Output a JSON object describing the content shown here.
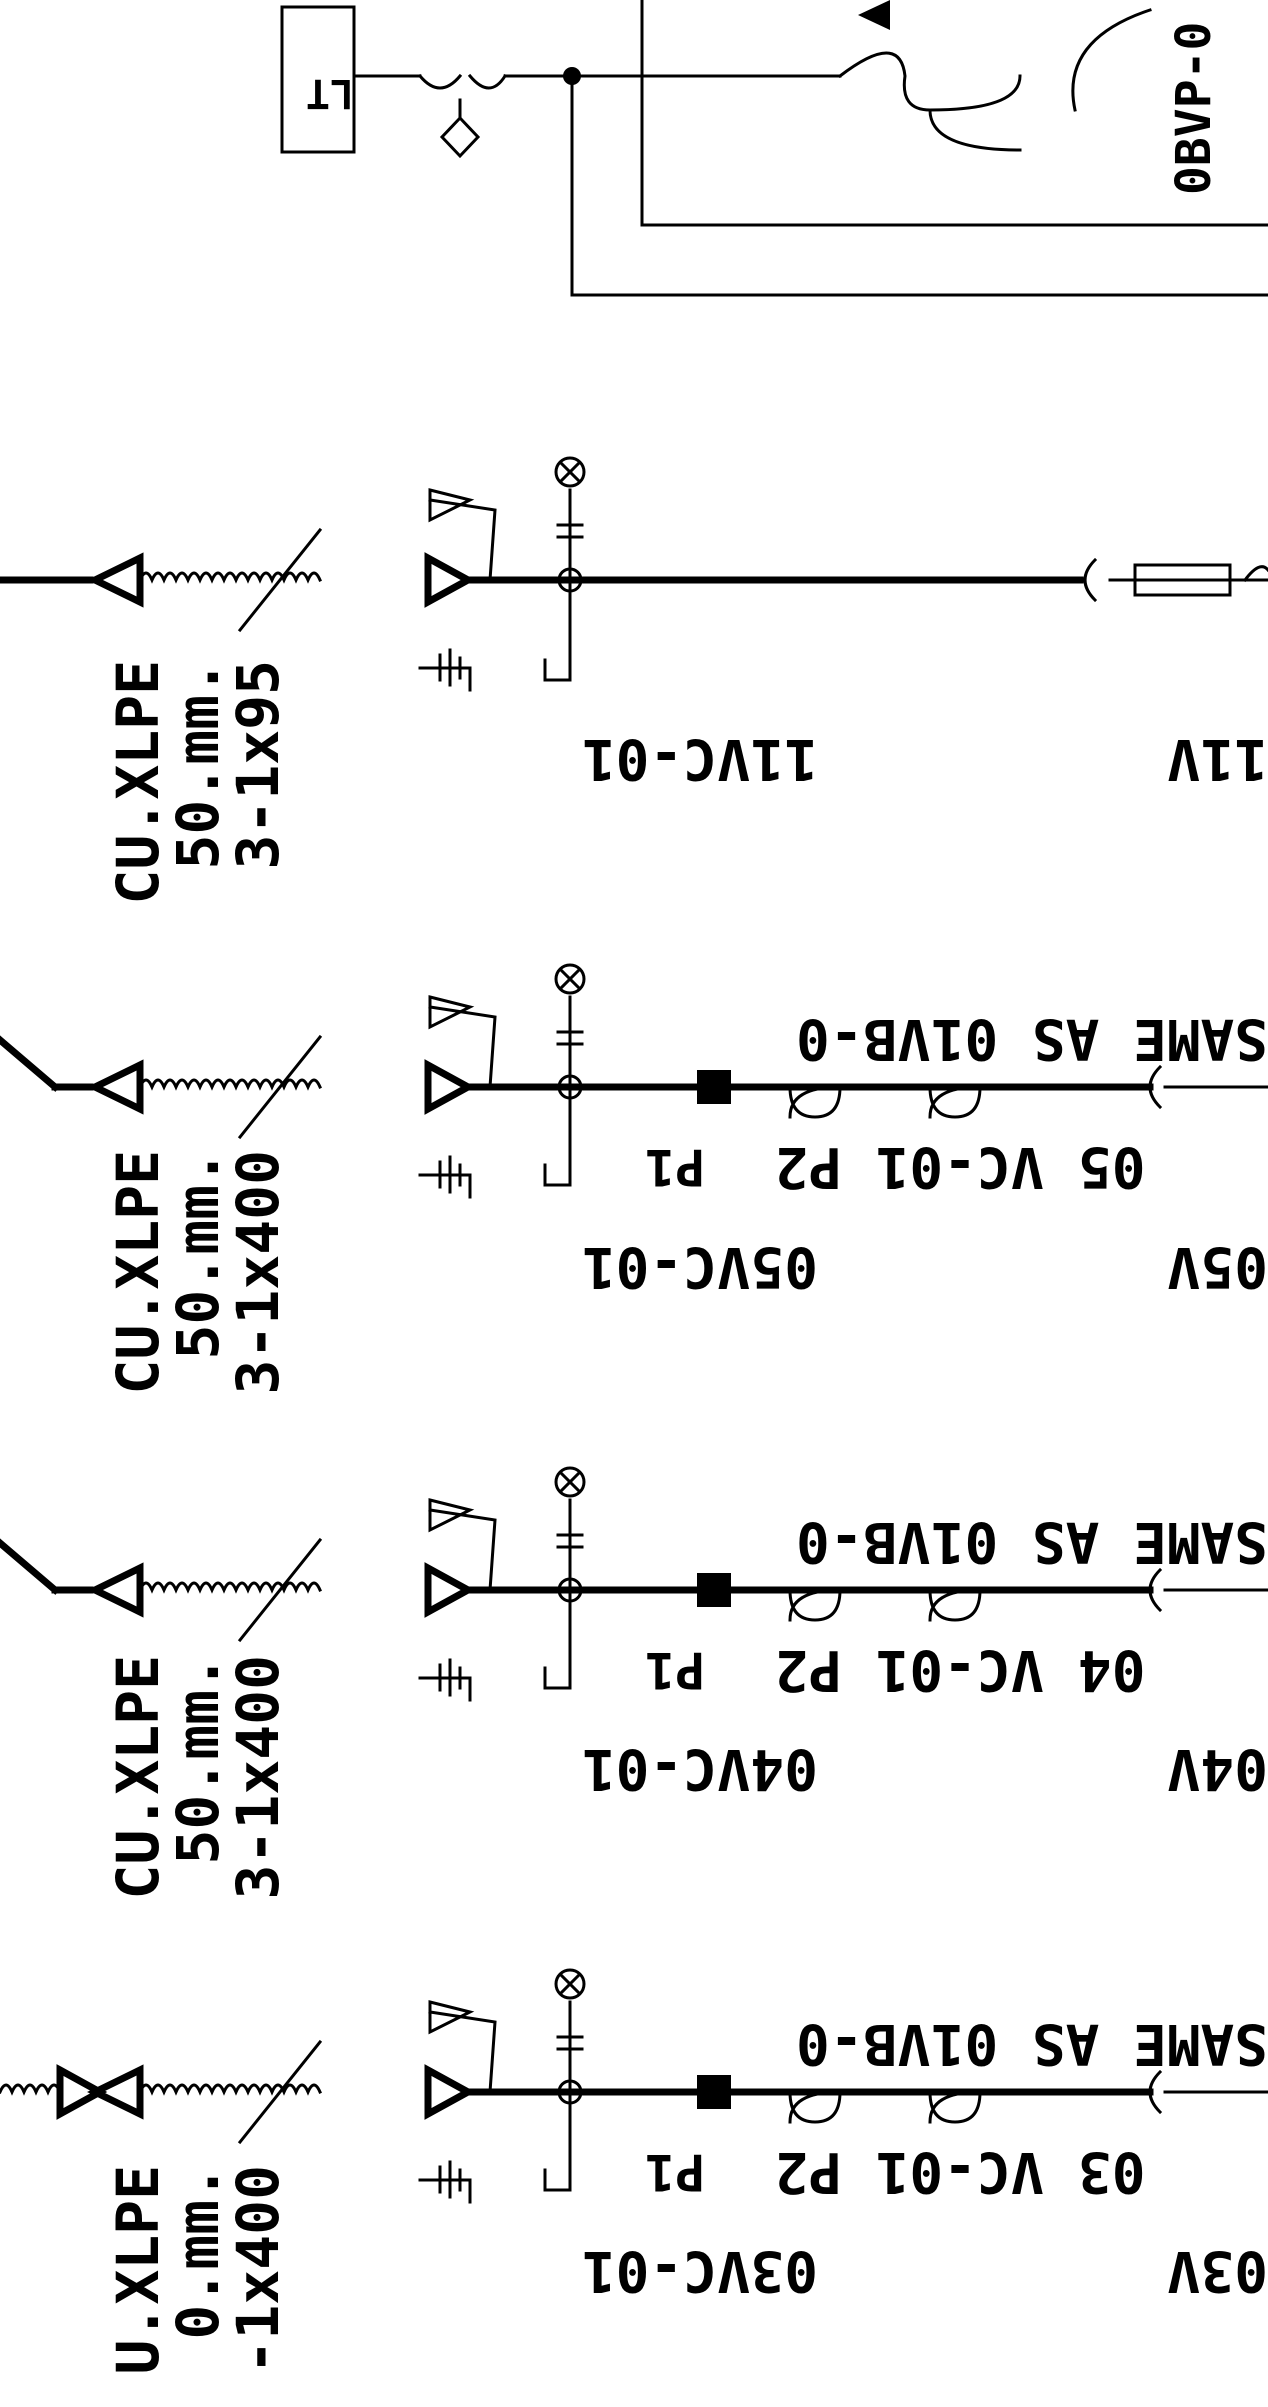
{
  "diagram": {
    "top_section": {
      "box_label": "LT",
      "vertical_label": "0BVP-0"
    },
    "cable_labels": {
      "row1": {
        "line1": "CU.XLPE",
        "line2": "50.mm.",
        "line3": "3-1x95"
      },
      "row2": {
        "line1": "CU.XLPE",
        "line2": "50.mm.",
        "line3": "3-1x400"
      },
      "row3": {
        "line1": "CU.XLPE",
        "line2": "50.mm.",
        "line3": "3-1x400"
      },
      "row4": {
        "line1": "U.XLPE",
        "line2": "0.mm.",
        "line3": "-1x400"
      }
    },
    "feeders": [
      {
        "id": "11VC-01",
        "right_label": "11V"
      },
      {
        "id": "05VC-01",
        "protection_label": "05 VC-01 P2",
        "p1": "P1",
        "same_as": "SAME AS 01VB-0",
        "right_label": "05V"
      },
      {
        "id": "04VC-01",
        "protection_label": "04 VC-01 P2",
        "p1": "P1",
        "same_as": "SAME AS 01VB-0",
        "right_label": "04V"
      },
      {
        "id": "03VC-01",
        "protection_label": "03 VC-01 P2",
        "p1": "P1",
        "same_as": "SAME AS 01VB-0",
        "right_label": "03V"
      }
    ]
  }
}
